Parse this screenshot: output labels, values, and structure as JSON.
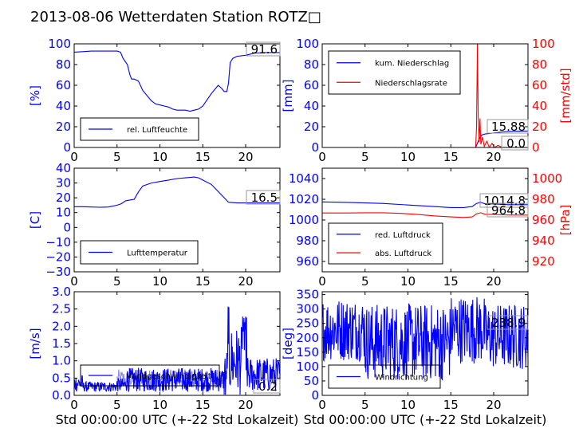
{
  "figure_title": "2013-08-06 Wetterdaten Station ROTZ□",
  "x_label": "Std 00:00:00 UTC (+-22 Std Lokalzeit)",
  "colors": {
    "blue": "#0000ff",
    "red": "#ff0000",
    "light_blue": "#8080ff",
    "black": "#000000"
  },
  "chart_data": [
    {
      "id": "humidity",
      "type": "line",
      "xlim": [
        0,
        24
      ],
      "ylim": [
        0,
        100
      ],
      "x_ticks": [
        "0",
        "5",
        "10",
        "15",
        "20"
      ],
      "y_ticks": [
        "0",
        "20",
        "40",
        "60",
        "80",
        "100"
      ],
      "ylabel": "[%]",
      "last_value": "91.6",
      "series": [
        {
          "name": "rel. Luftfeuchte",
          "color": "#0000ff",
          "points": [
            [
              0,
              92
            ],
            [
              1,
              92.5
            ],
            [
              2,
              93
            ],
            [
              3,
              93
            ],
            [
              4,
              93
            ],
            [
              5,
              93
            ],
            [
              5.4,
              92
            ],
            [
              5.7,
              86
            ],
            [
              6.2,
              80
            ],
            [
              6.5,
              70
            ],
            [
              6.7,
              66
            ],
            [
              7,
              66
            ],
            [
              7.5,
              64
            ],
            [
              8,
              55
            ],
            [
              8.5,
              50
            ],
            [
              9,
              45
            ],
            [
              9.5,
              42
            ],
            [
              10,
              41
            ],
            [
              10.5,
              40
            ],
            [
              11,
              39
            ],
            [
              11.5,
              37
            ],
            [
              12,
              36
            ],
            [
              12.5,
              36
            ],
            [
              13,
              36
            ],
            [
              13.5,
              35
            ],
            [
              14,
              36
            ],
            [
              14.5,
              37
            ],
            [
              15,
              40
            ],
            [
              15.5,
              46
            ],
            [
              16,
              52
            ],
            [
              16.5,
              57
            ],
            [
              16.8,
              60
            ],
            [
              17.2,
              57
            ],
            [
              17.5,
              54
            ],
            [
              17.8,
              54
            ],
            [
              18,
              62
            ],
            [
              18.2,
              82
            ],
            [
              18.5,
              86
            ],
            [
              19,
              88
            ],
            [
              20,
              89
            ],
            [
              21,
              91
            ],
            [
              22,
              91.5
            ],
            [
              23,
              91.6
            ],
            [
              24,
              91.6
            ]
          ]
        }
      ]
    },
    {
      "id": "precipitation",
      "type": "line",
      "xlim": [
        0,
        24
      ],
      "ylim": [
        0,
        100
      ],
      "ylim_right": [
        0,
        100
      ],
      "x_ticks": [
        "0",
        "5",
        "10",
        "15",
        "20"
      ],
      "y_ticks": [
        "0",
        "20",
        "40",
        "60",
        "80",
        "100"
      ],
      "y_ticks_right": [
        "0",
        "20",
        "40",
        "60",
        "80",
        "100"
      ],
      "ylabel": "[mm]",
      "ylabel_right": "[mm/std]",
      "last_value_left": "15.88",
      "last_value_right": "0.0",
      "series": [
        {
          "name": "kum. Niederschlag",
          "color": "#0000ff",
          "axis": "left",
          "points": [
            [
              0,
              0
            ],
            [
              17.9,
              0
            ],
            [
              18.1,
              4
            ],
            [
              18.3,
              8
            ],
            [
              18.6,
              12
            ],
            [
              19,
              13
            ],
            [
              20,
              14
            ],
            [
              21,
              15
            ],
            [
              22,
              15.5
            ],
            [
              24,
              15.9
            ]
          ]
        },
        {
          "name": "Niederschlagsrate",
          "color": "#ff0000",
          "axis": "right",
          "points": [
            [
              0,
              0
            ],
            [
              17.9,
              0
            ],
            [
              18.0,
              20
            ],
            [
              18.1,
              100
            ],
            [
              18.2,
              30
            ],
            [
              18.3,
              5
            ],
            [
              18.4,
              28
            ],
            [
              18.5,
              3
            ],
            [
              18.7,
              10
            ],
            [
              18.9,
              1
            ],
            [
              19.2,
              6
            ],
            [
              19.5,
              0
            ],
            [
              19.8,
              4
            ],
            [
              20.1,
              0
            ],
            [
              20.5,
              2
            ],
            [
              21,
              0
            ],
            [
              24,
              0
            ]
          ]
        }
      ]
    },
    {
      "id": "temperature",
      "type": "line",
      "xlim": [
        0,
        24
      ],
      "ylim": [
        -30,
        40
      ],
      "x_ticks": [
        "0",
        "5",
        "10",
        "15",
        "20"
      ],
      "y_ticks": [
        "−30",
        "−20",
        "−10",
        "0",
        "10",
        "20",
        "30",
        "40"
      ],
      "ylabel": "[C]",
      "last_value": "16.5",
      "series": [
        {
          "name": "Lufttemperatur",
          "color": "#0000ff",
          "points": [
            [
              0,
              14
            ],
            [
              1,
              14
            ],
            [
              2,
              13.8
            ],
            [
              3,
              13.6
            ],
            [
              4,
              13.8
            ],
            [
              5,
              15
            ],
            [
              5.5,
              16
            ],
            [
              6,
              18
            ],
            [
              6.5,
              18.5
            ],
            [
              7,
              19
            ],
            [
              7.5,
              24
            ],
            [
              8,
              28
            ],
            [
              9,
              30
            ],
            [
              10,
              31
            ],
            [
              11,
              32
            ],
            [
              12,
              33
            ],
            [
              13,
              33.5
            ],
            [
              14,
              34
            ],
            [
              14.5,
              33.5
            ],
            [
              15,
              32
            ],
            [
              16,
              29
            ],
            [
              16.5,
              26
            ],
            [
              17,
              23
            ],
            [
              17.5,
              20
            ],
            [
              18,
              17
            ],
            [
              19,
              16.5
            ],
            [
              20,
              16.5
            ],
            [
              21,
              16.5
            ],
            [
              22,
              16.5
            ],
            [
              24,
              16.5
            ]
          ]
        }
      ]
    },
    {
      "id": "pressure",
      "type": "line",
      "xlim": [
        0,
        24
      ],
      "ylim": [
        950,
        1050
      ],
      "ylim_right": [
        910,
        1010
      ],
      "x_ticks": [
        "0",
        "5",
        "10",
        "15",
        "20"
      ],
      "y_ticks": [
        "960",
        "980",
        "1000",
        "1020",
        "1040"
      ],
      "y_ticks_right": [
        "920",
        "940",
        "960",
        "980",
        "1000"
      ],
      "ylabel_right": "[hPa]",
      "last_value_left": "1014.8",
      "last_value_right": "964.8",
      "series": [
        {
          "name": "red. Luftdruck",
          "color": "#0000ff",
          "axis": "left",
          "points": [
            [
              0,
              1017.5
            ],
            [
              3,
              1017
            ],
            [
              5,
              1016.5
            ],
            [
              7,
              1016
            ],
            [
              9,
              1015
            ],
            [
              11,
              1014
            ],
            [
              13,
              1013
            ],
            [
              15,
              1012
            ],
            [
              16.5,
              1012
            ],
            [
              17.5,
              1013
            ],
            [
              18,
              1016
            ],
            [
              18.5,
              1017
            ],
            [
              19,
              1015.5
            ],
            [
              20,
              1015.5
            ],
            [
              21,
              1015
            ],
            [
              22,
              1014.8
            ],
            [
              24,
              1014.8
            ]
          ]
        },
        {
          "name": "abs. Luftdruck",
          "color": "#ff0000",
          "axis": "right",
          "points": [
            [
              0,
              966.8
            ],
            [
              3,
              966.8
            ],
            [
              5,
              967
            ],
            [
              7,
              967
            ],
            [
              9,
              966.5
            ],
            [
              11,
              965.5
            ],
            [
              13,
              964
            ],
            [
              15,
              963
            ],
            [
              16.5,
              962.5
            ],
            [
              17.5,
              963
            ],
            [
              18,
              966
            ],
            [
              18.5,
              967
            ],
            [
              19,
              965.5
            ],
            [
              20,
              965.5
            ],
            [
              21,
              965
            ],
            [
              22,
              964.8
            ],
            [
              24,
              964.8
            ]
          ]
        }
      ]
    },
    {
      "id": "wind_speed",
      "type": "line",
      "xlim": [
        0,
        24
      ],
      "ylim": [
        0,
        3
      ],
      "x_ticks": [
        "0",
        "5",
        "10",
        "15",
        "20"
      ],
      "y_ticks": [
        "0.0",
        "0.5",
        "1.0",
        "1.5",
        "2.0",
        "2.5",
        "3.0"
      ],
      "ylabel": "[m/s]",
      "last_value": "0.2",
      "series": [
        {
          "name": "Windgeschwindigkeit",
          "color": "#0000ff"
        }
      ]
    },
    {
      "id": "wind_direction",
      "type": "line",
      "xlim": [
        0,
        24
      ],
      "ylim": [
        0,
        360
      ],
      "x_ticks": [
        "0",
        "5",
        "10",
        "15",
        "20"
      ],
      "y_ticks": [
        "0",
        "50",
        "100",
        "150",
        "200",
        "250",
        "300",
        "350"
      ],
      "ylabel": "[deg]",
      "last_value": "238.9",
      "series": [
        {
          "name": "Windrichtung",
          "color": "#0000ff"
        }
      ]
    }
  ]
}
